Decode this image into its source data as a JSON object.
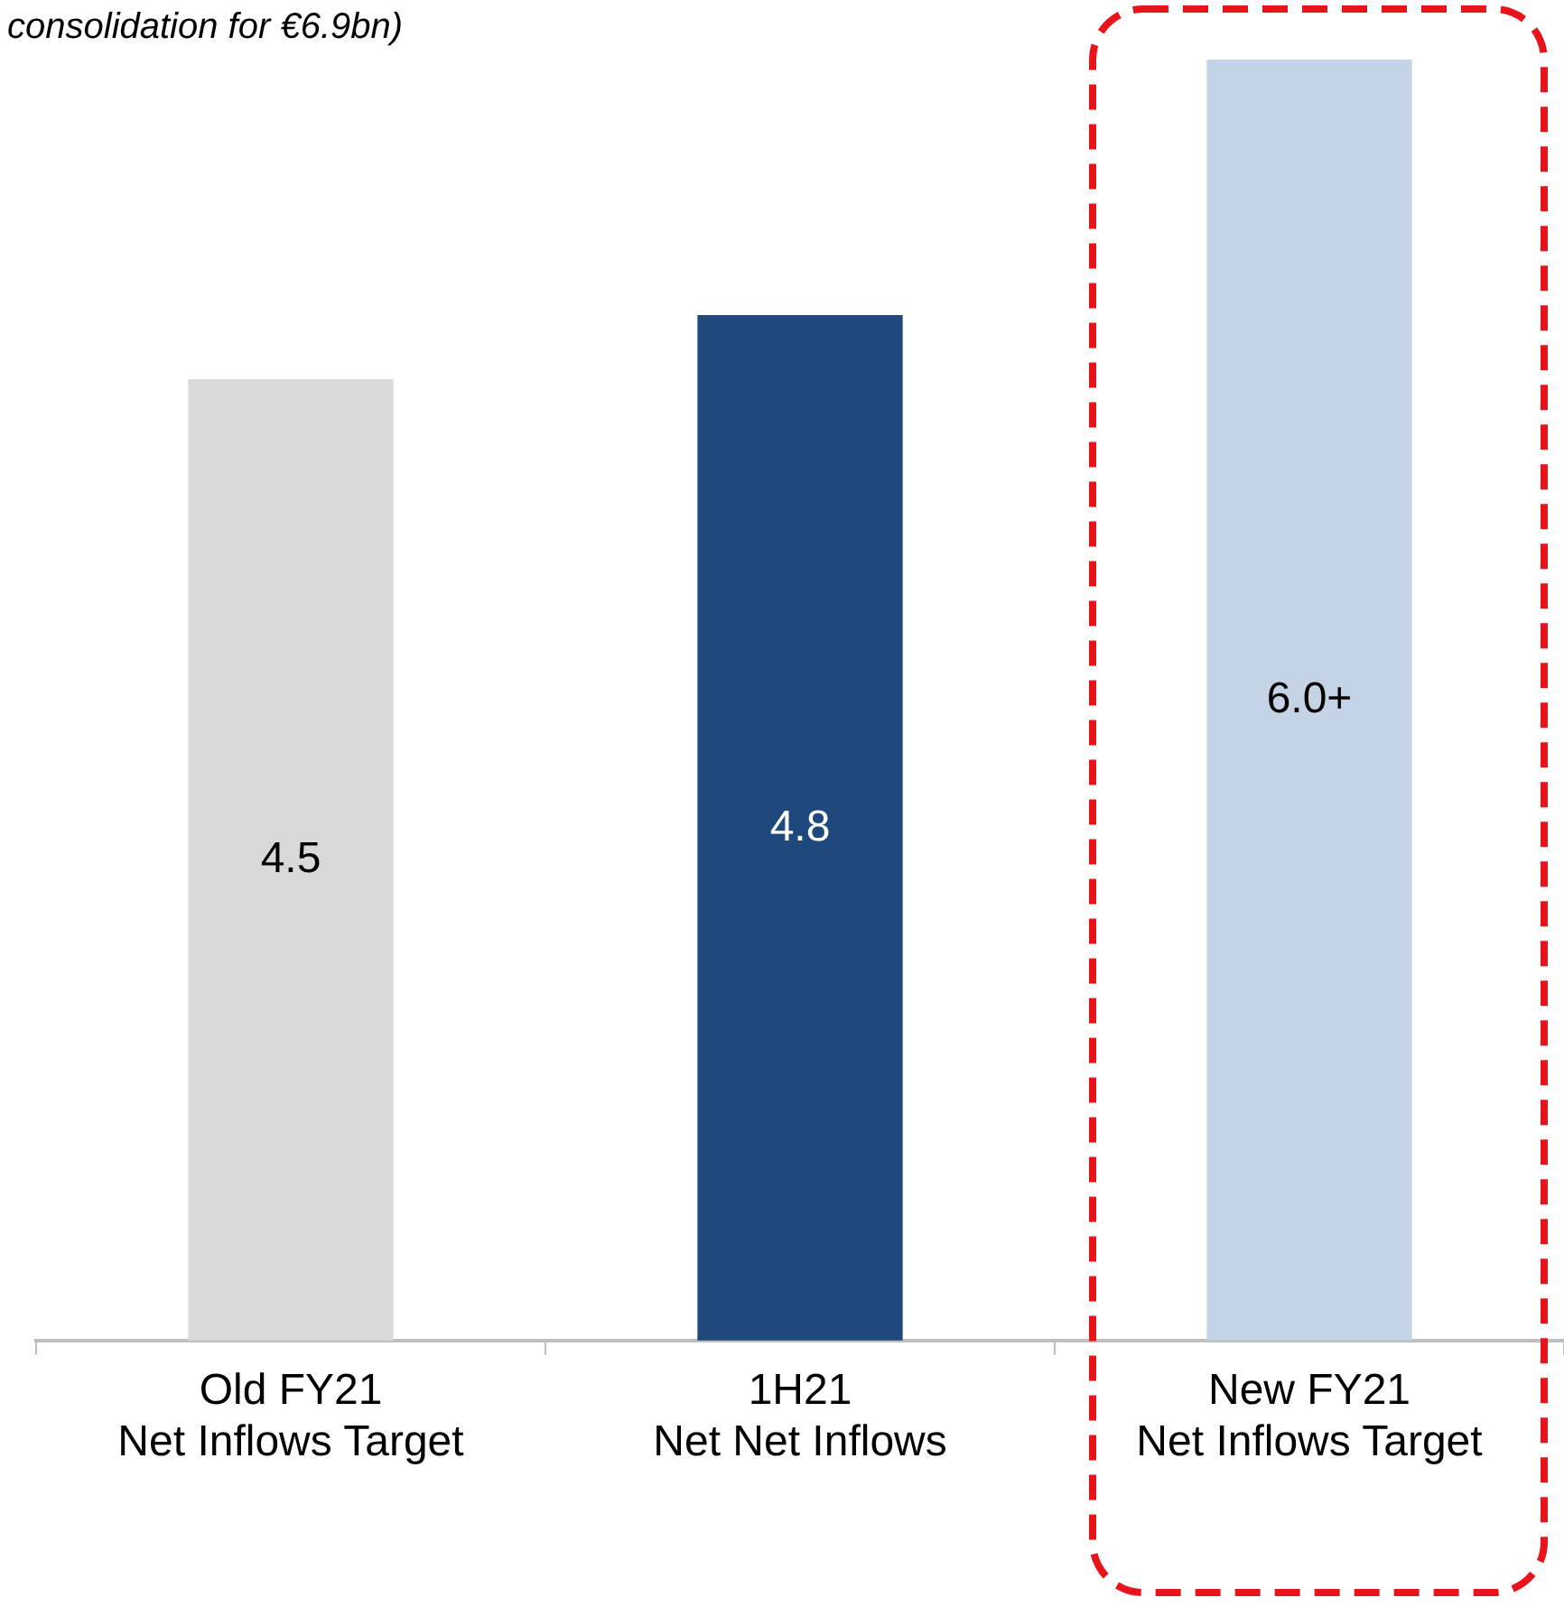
{
  "chart_data": {
    "type": "bar",
    "title": "consolidation for €6.9bn)",
    "categories": [
      "Old FY21\nNet Inflows Target",
      "1H21\nNet Net Inflows",
      "New FY21\nNet Inflows Target"
    ],
    "values": [
      4.5,
      4.8,
      6.0
    ],
    "colors": [
      "#d9d9d9",
      "#1f497d",
      "#c5d3e6"
    ],
    "value_labels": [
      "4.5",
      "4.8",
      "6.0+"
    ],
    "tick_labels": "x",
    "grid": false,
    "legend": false
  }
}
